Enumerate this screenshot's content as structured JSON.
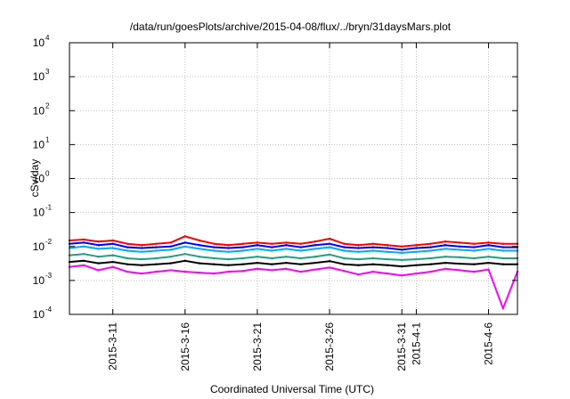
{
  "chart_data": {
    "type": "line",
    "title": "/data/run/goesPlots/archive/2015-04-08/flux/../bryn/31daysMars.plot",
    "xlabel": "Coordinated Universal Time (UTC)",
    "ylabel": "cSv/day",
    "yscale": "log",
    "ylim": [
      0.0001,
      10000
    ],
    "xlim": [
      "2015-03-08",
      "2015-04-08"
    ],
    "grid": true,
    "y_ticks": [
      {
        "base": "10",
        "exp": "-4",
        "value": 0.0001
      },
      {
        "base": "10",
        "exp": "-3",
        "value": 0.001
      },
      {
        "base": "10",
        "exp": "-2",
        "value": 0.01
      },
      {
        "base": "10",
        "exp": "-1",
        "value": 0.1
      },
      {
        "base": "10",
        "exp": "0",
        "value": 1
      },
      {
        "base": "10",
        "exp": "1",
        "value": 10
      },
      {
        "base": "10",
        "exp": "2",
        "value": 100
      },
      {
        "base": "10",
        "exp": "3",
        "value": 1000
      },
      {
        "base": "10",
        "exp": "4",
        "value": 10000
      }
    ],
    "x_ticks": [
      {
        "date": "2015-03-11",
        "label": "2015-3-11"
      },
      {
        "date": "2015-03-16",
        "label": "2015-3-16"
      },
      {
        "date": "2015-03-21",
        "label": "2015-3-21"
      },
      {
        "date": "2015-03-26",
        "label": "2015-3-26"
      },
      {
        "date": "2015-03-31",
        "label": "2015-3-31"
      },
      {
        "date": "2015-04-01",
        "label": "2015-4-1"
      },
      {
        "date": "2015-04-06",
        "label": "2015-4-6"
      }
    ],
    "series": [
      {
        "color": "#ff0000",
        "x": [
          "2015-03-08",
          "2015-03-09",
          "2015-03-10",
          "2015-03-11",
          "2015-03-12",
          "2015-03-13",
          "2015-03-14",
          "2015-03-15",
          "2015-03-16",
          "2015-03-17",
          "2015-03-18",
          "2015-03-19",
          "2015-03-20",
          "2015-03-21",
          "2015-03-22",
          "2015-03-23",
          "2015-03-24",
          "2015-03-25",
          "2015-03-26",
          "2015-03-27",
          "2015-03-28",
          "2015-03-29",
          "2015-03-30",
          "2015-03-31",
          "2015-04-01",
          "2015-04-02",
          "2015-04-03",
          "2015-04-04",
          "2015-04-05",
          "2015-04-06",
          "2015-04-07",
          "2015-04-08"
        ],
        "y": [
          0.015,
          0.016,
          0.014,
          0.015,
          0.012,
          0.011,
          0.012,
          0.013,
          0.02,
          0.015,
          0.012,
          0.011,
          0.012,
          0.013,
          0.012,
          0.013,
          0.012,
          0.014,
          0.017,
          0.012,
          0.011,
          0.012,
          0.011,
          0.01,
          0.011,
          0.012,
          0.014,
          0.013,
          0.012,
          0.013,
          0.012,
          0.012
        ]
      },
      {
        "color": "#0000ff",
        "x": [
          "2015-03-08",
          "2015-03-09",
          "2015-03-10",
          "2015-03-11",
          "2015-03-12",
          "2015-03-13",
          "2015-03-14",
          "2015-03-15",
          "2015-03-16",
          "2015-03-17",
          "2015-03-18",
          "2015-03-19",
          "2015-03-20",
          "2015-03-21",
          "2015-03-22",
          "2015-03-23",
          "2015-03-24",
          "2015-03-25",
          "2015-03-26",
          "2015-03-27",
          "2015-03-28",
          "2015-03-29",
          "2015-03-30",
          "2015-03-31",
          "2015-04-01",
          "2015-04-02",
          "2015-04-03",
          "2015-04-04",
          "2015-04-05",
          "2015-04-06",
          "2015-04-07",
          "2015-04-08"
        ],
        "y": [
          0.012,
          0.013,
          0.011,
          0.012,
          0.0095,
          0.009,
          0.0095,
          0.01,
          0.013,
          0.011,
          0.0095,
          0.009,
          0.0095,
          0.011,
          0.0095,
          0.011,
          0.0095,
          0.011,
          0.012,
          0.0095,
          0.009,
          0.0095,
          0.009,
          0.008,
          0.009,
          0.0095,
          0.011,
          0.01,
          0.0095,
          0.011,
          0.0095,
          0.0095
        ]
      },
      {
        "color": "#00aaff",
        "x": [
          "2015-03-08",
          "2015-03-09",
          "2015-03-10",
          "2015-03-11",
          "2015-03-12",
          "2015-03-13",
          "2015-03-14",
          "2015-03-15",
          "2015-03-16",
          "2015-03-17",
          "2015-03-18",
          "2015-03-19",
          "2015-03-20",
          "2015-03-21",
          "2015-03-22",
          "2015-03-23",
          "2015-03-24",
          "2015-03-25",
          "2015-03-26",
          "2015-03-27",
          "2015-03-28",
          "2015-03-29",
          "2015-03-30",
          "2015-03-31",
          "2015-04-01",
          "2015-04-02",
          "2015-04-03",
          "2015-04-04",
          "2015-04-05",
          "2015-04-06",
          "2015-04-07",
          "2015-04-08"
        ],
        "y": [
          0.009,
          0.01,
          0.0085,
          0.009,
          0.0075,
          0.007,
          0.0075,
          0.008,
          0.01,
          0.0085,
          0.0075,
          0.007,
          0.0075,
          0.0085,
          0.0075,
          0.0085,
          0.0075,
          0.0085,
          0.0095,
          0.0075,
          0.007,
          0.0075,
          0.007,
          0.0065,
          0.007,
          0.0075,
          0.0085,
          0.008,
          0.0075,
          0.0085,
          0.0075,
          0.0075
        ]
      },
      {
        "color": "#20a080",
        "x": [
          "2015-03-08",
          "2015-03-09",
          "2015-03-10",
          "2015-03-11",
          "2015-03-12",
          "2015-03-13",
          "2015-03-14",
          "2015-03-15",
          "2015-03-16",
          "2015-03-17",
          "2015-03-18",
          "2015-03-19",
          "2015-03-20",
          "2015-03-21",
          "2015-03-22",
          "2015-03-23",
          "2015-03-24",
          "2015-03-25",
          "2015-03-26",
          "2015-03-27",
          "2015-03-28",
          "2015-03-29",
          "2015-03-30",
          "2015-03-31",
          "2015-04-01",
          "2015-04-02",
          "2015-04-03",
          "2015-04-04",
          "2015-04-05",
          "2015-04-06",
          "2015-04-07",
          "2015-04-08"
        ],
        "y": [
          0.0055,
          0.006,
          0.005,
          0.0055,
          0.0045,
          0.0042,
          0.0045,
          0.005,
          0.006,
          0.005,
          0.0045,
          0.0042,
          0.0045,
          0.005,
          0.0045,
          0.005,
          0.0045,
          0.005,
          0.0058,
          0.0045,
          0.0042,
          0.0045,
          0.0042,
          0.004,
          0.0042,
          0.0045,
          0.005,
          0.0048,
          0.0045,
          0.005,
          0.0045,
          0.0045
        ]
      },
      {
        "color": "#000000",
        "x": [
          "2015-03-08",
          "2015-03-09",
          "2015-03-10",
          "2015-03-11",
          "2015-03-12",
          "2015-03-13",
          "2015-03-14",
          "2015-03-15",
          "2015-03-16",
          "2015-03-17",
          "2015-03-18",
          "2015-03-19",
          "2015-03-20",
          "2015-03-21",
          "2015-03-22",
          "2015-03-23",
          "2015-03-24",
          "2015-03-25",
          "2015-03-26",
          "2015-03-27",
          "2015-03-28",
          "2015-03-29",
          "2015-03-30",
          "2015-03-31",
          "2015-04-01",
          "2015-04-02",
          "2015-04-03",
          "2015-04-04",
          "2015-04-05",
          "2015-04-06",
          "2015-04-07",
          "2015-04-08"
        ],
        "y": [
          0.0035,
          0.0038,
          0.0032,
          0.0035,
          0.003,
          0.0028,
          0.003,
          0.0032,
          0.0038,
          0.0032,
          0.003,
          0.0028,
          0.003,
          0.0033,
          0.003,
          0.0033,
          0.003,
          0.0033,
          0.0037,
          0.003,
          0.0028,
          0.003,
          0.0028,
          0.0026,
          0.0028,
          0.003,
          0.0033,
          0.0031,
          0.003,
          0.0033,
          0.003,
          0.003
        ]
      },
      {
        "color": "#ff00ff",
        "x": [
          "2015-03-08",
          "2015-03-09",
          "2015-03-10",
          "2015-03-11",
          "2015-03-12",
          "2015-03-13",
          "2015-03-14",
          "2015-03-15",
          "2015-03-16",
          "2015-03-17",
          "2015-03-18",
          "2015-03-19",
          "2015-03-20",
          "2015-03-21",
          "2015-03-22",
          "2015-03-23",
          "2015-03-24",
          "2015-03-25",
          "2015-03-26",
          "2015-03-27",
          "2015-03-28",
          "2015-03-29",
          "2015-03-30",
          "2015-03-31",
          "2015-04-01",
          "2015-04-02",
          "2015-04-03",
          "2015-04-04",
          "2015-04-05",
          "2015-04-06",
          "2015-04-07",
          "2015-04-08"
        ],
        "y": [
          0.0025,
          0.0028,
          0.002,
          0.0025,
          0.0018,
          0.0016,
          0.0018,
          0.002,
          0.0018,
          0.0017,
          0.0016,
          0.0018,
          0.0019,
          0.0022,
          0.002,
          0.0022,
          0.0018,
          0.0021,
          0.0024,
          0.0019,
          0.0015,
          0.0018,
          0.0016,
          0.0014,
          0.0016,
          0.0018,
          0.0022,
          0.002,
          0.0018,
          0.0021,
          0.00015,
          0.0018
        ]
      }
    ]
  }
}
